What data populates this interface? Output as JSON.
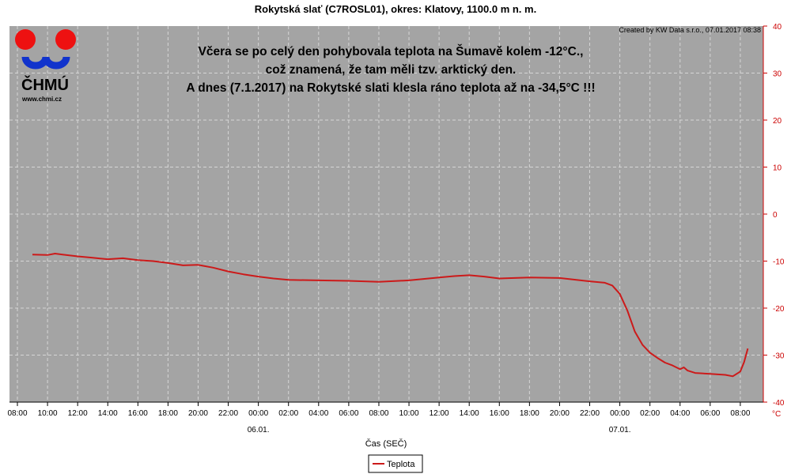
{
  "title": "Rokytská slať (C7ROSL01), okres: Klatovy, 1100.0 m n. m.",
  "credit": "Created by KW Data s.r.o., 07.01.2017 08:38",
  "logo": {
    "name": "ČHMÚ",
    "url": "www.chmi.cz"
  },
  "annotation": [
    "Včera se po celý den pohybovala teplota na Šumavě kolem -12°C.,",
    "což znamená, že tam měli tzv. arktický den.",
    "A dnes (7.1.2017) na Rokytské slati klesla ráno teplota až na -34,5°C !!!"
  ],
  "colors": {
    "plot_bg": "#a4a4a4",
    "grid": "#d6d6d6",
    "line": "#cc1a1a",
    "axis_red": "#cc0000",
    "logo_red": "#ee1111",
    "logo_blue": "#1133cc"
  },
  "chart_data": {
    "type": "line",
    "xlabel": "Čas (SEČ)",
    "ylabel_unit": "°C",
    "ylim": [
      -40,
      40
    ],
    "xlim_hours": [
      8,
      57
    ],
    "x_tick_labels": [
      "08:00",
      "10:00",
      "12:00",
      "14:00",
      "16:00",
      "18:00",
      "20:00",
      "22:00",
      "00:00",
      "02:00",
      "04:00",
      "06:00",
      "08:00",
      "10:00",
      "12:00",
      "14:00",
      "16:00",
      "18:00",
      "20:00",
      "22:00",
      "00:00",
      "02:00",
      "04:00",
      "06:00",
      "08:00"
    ],
    "date_labels": [
      {
        "label": "06.01.",
        "at": "00:00"
      },
      {
        "label": "07.01.",
        "at": "00:00"
      }
    ],
    "y_ticks": [
      40,
      30,
      20,
      10,
      0,
      -10,
      -20,
      -30,
      -40
    ],
    "grid": true,
    "legend_position": "bottom-center",
    "series": [
      {
        "name": "Teplota",
        "points": [
          [
            "05.01. 09:00",
            -8.6
          ],
          [
            "05.01. 10:00",
            -8.7
          ],
          [
            "05.01. 10:30",
            -8.4
          ],
          [
            "05.01. 11:00",
            -8.6
          ],
          [
            "05.01. 12:00",
            -9.0
          ],
          [
            "05.01. 13:00",
            -9.3
          ],
          [
            "05.01. 14:00",
            -9.6
          ],
          [
            "05.01. 15:00",
            -9.4
          ],
          [
            "05.01. 16:00",
            -9.8
          ],
          [
            "05.01. 17:00",
            -10.0
          ],
          [
            "05.01. 18:00",
            -10.4
          ],
          [
            "05.01. 19:00",
            -10.9
          ],
          [
            "05.01. 20:00",
            -10.8
          ],
          [
            "05.01. 21:00",
            -11.4
          ],
          [
            "05.01. 22:00",
            -12.2
          ],
          [
            "05.01. 23:00",
            -12.8
          ],
          [
            "06.01. 00:00",
            -13.3
          ],
          [
            "06.01. 01:00",
            -13.7
          ],
          [
            "06.01. 02:00",
            -14.0
          ],
          [
            "06.01. 04:00",
            -14.1
          ],
          [
            "06.01. 06:00",
            -14.2
          ],
          [
            "06.01. 08:00",
            -14.4
          ],
          [
            "06.01. 10:00",
            -14.1
          ],
          [
            "06.01. 12:00",
            -13.5
          ],
          [
            "06.01. 13:00",
            -13.2
          ],
          [
            "06.01. 14:00",
            -13.0
          ],
          [
            "06.01. 15:00",
            -13.3
          ],
          [
            "06.01. 16:00",
            -13.7
          ],
          [
            "06.01. 18:00",
            -13.5
          ],
          [
            "06.01. 20:00",
            -13.6
          ],
          [
            "06.01. 22:00",
            -14.3
          ],
          [
            "06.01. 23:00",
            -14.6
          ],
          [
            "06.01. 23:30",
            -15.2
          ],
          [
            "07.01. 00:00",
            -17.0
          ],
          [
            "07.01. 00:30",
            -20.5
          ],
          [
            "07.01. 01:00",
            -25.0
          ],
          [
            "07.01. 01:30",
            -27.8
          ],
          [
            "07.01. 02:00",
            -29.5
          ],
          [
            "07.01. 02:30",
            -30.6
          ],
          [
            "07.01. 03:00",
            -31.6
          ],
          [
            "07.01. 03:30",
            -32.2
          ],
          [
            "07.01. 04:00",
            -33.0
          ],
          [
            "07.01. 04:15",
            -32.6
          ],
          [
            "07.01. 04:30",
            -33.3
          ],
          [
            "07.01. 05:00",
            -33.8
          ],
          [
            "07.01. 06:00",
            -34.0
          ],
          [
            "07.01. 07:00",
            -34.2
          ],
          [
            "07.01. 07:30",
            -34.5
          ],
          [
            "07.01. 08:00",
            -33.5
          ],
          [
            "07.01. 08:15",
            -31.5
          ],
          [
            "07.01. 08:30",
            -28.6
          ]
        ]
      }
    ]
  }
}
